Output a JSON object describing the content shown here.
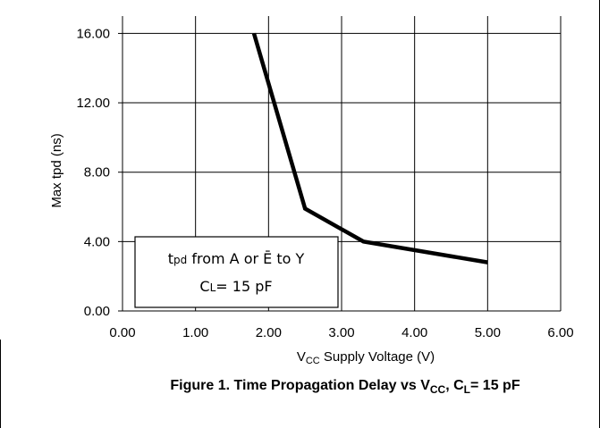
{
  "chart_data": {
    "type": "line",
    "xlabel": {
      "main": "V",
      "sub": "CC",
      "rest": " Supply Voltage (V)"
    },
    "ylabel": "Max tpd  (ns)",
    "xlim": [
      0,
      6
    ],
    "ylim": [
      0,
      17
    ],
    "x_ticks": [
      "0.00",
      "1.00",
      "2.00",
      "3.00",
      "4.00",
      "5.00",
      "6.00"
    ],
    "y_ticks": [
      "0.00",
      "4.00",
      "8.00",
      "12.00",
      "16.00"
    ],
    "grid": true,
    "series": [
      {
        "x": [
          1.8,
          2.5,
          3.3,
          5.0
        ],
        "y": [
          16.0,
          5.9,
          4.0,
          2.8
        ]
      }
    ],
    "annotation": {
      "line1": {
        "t": "t",
        "t_sub": "pd",
        "text": " from A or Ē to Y"
      },
      "line2": {
        "c": "C",
        "c_sub": "L",
        "text": "= 15  pF"
      }
    },
    "caption": {
      "a": "Figure 1. Time Propagation Delay vs V",
      "a_sub": "CC",
      "b": ", C",
      "b_sub": "L",
      "c": "= 15 pF"
    }
  }
}
